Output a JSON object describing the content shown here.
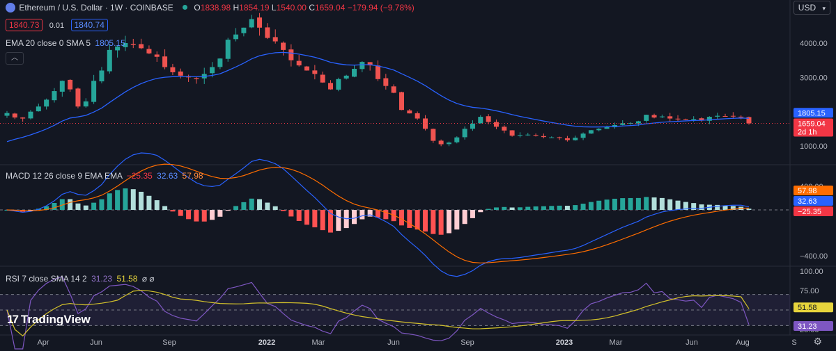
{
  "header": {
    "symbol": "Ethereum / U.S. Dollar · 1W · COINBASE",
    "open_label": "O",
    "open": "1838.98",
    "high_label": "H",
    "high": "1854.19",
    "low_label": "L",
    "low": "1540.00",
    "close_label": "C",
    "close": "1659.04",
    "change": "−179.94 (−9.78%)",
    "sell_price": "1840.73",
    "spread": "0.01",
    "buy_price": "1840.74",
    "currency": "USD"
  },
  "ema_legend": {
    "label": "EMA 20 close 0 SMA 5",
    "value": "1805.15"
  },
  "macd_legend": {
    "label": "MACD 12 26 close 9 EMA EMA",
    "hist": "−25.35",
    "macd": "32.63",
    "signal": "57.98"
  },
  "rsi_legend": {
    "label": "RSI 7 close SMA 14 2",
    "rsi": "31.23",
    "sma": "51.58",
    "extra": "⌀ ⌀"
  },
  "price_axis": {
    "ticks": [
      "4000.00",
      "3000.00",
      "1000.00"
    ]
  },
  "price_badges": {
    "ema": "1805.15",
    "close": "1659.04",
    "countdown": "2d 1h"
  },
  "macd_axis": {
    "ticks": [
      "−400.00"
    ],
    "top_partial": "400.00"
  },
  "macd_badges": {
    "signal": "57.98",
    "macd": "32.63",
    "hist": "−25.35"
  },
  "rsi_axis": {
    "ticks": [
      "100.00",
      "75.00",
      "25.00"
    ]
  },
  "rsi_badges": {
    "sma": "51.58",
    "rsi": "31.23"
  },
  "time_axis": [
    {
      "label": "Apr",
      "bold": false
    },
    {
      "label": "Jun",
      "bold": false
    },
    {
      "label": "Sep",
      "bold": false
    },
    {
      "label": "2022",
      "bold": true
    },
    {
      "label": "Mar",
      "bold": false
    },
    {
      "label": "Jun",
      "bold": false
    },
    {
      "label": "Sep",
      "bold": false
    },
    {
      "label": "2023",
      "bold": true
    },
    {
      "label": "Mar",
      "bold": false
    },
    {
      "label": "Jun",
      "bold": false
    },
    {
      "label": "Aug",
      "bold": false
    },
    {
      "label": "S",
      "bold": false
    }
  ],
  "logo_text": "TradingView",
  "colors": {
    "up": "#26a69a",
    "down": "#ef5350",
    "ema": "#2962ff",
    "macd": "#2962ff",
    "signal": "#ff6d00",
    "rsi": "#7e57c2",
    "rsi_sma": "#d4c22b"
  },
  "chart_data": {
    "type": "candlestick",
    "title": "Ethereum / U.S. Dollar · 1W · COINBASE",
    "price_anchor_close": [
      1960,
      1830,
      1800,
      2000,
      2150,
      2350,
      2600,
      2900,
      2650,
      2150,
      2300,
      2900,
      3200,
      3800,
      3900,
      4000,
      3950,
      3850,
      3700,
      3600,
      3300,
      3150,
      3050,
      3000,
      2950,
      3100,
      3300,
      3550,
      4100,
      4250,
      4450,
      4700,
      4450,
      4150,
      4050,
      3800,
      3500,
      3350,
      3200,
      3100,
      2850,
      2650,
      2950,
      3050,
      3250,
      3450,
      3350,
      2950,
      2750,
      2550,
      2050,
      1950,
      1800,
      1500,
      1150,
      1050,
      1100,
      1250,
      1500,
      1650,
      1850,
      1700,
      1560,
      1450,
      1300,
      1320,
      1330,
      1300,
      1260,
      1250,
      1230,
      1170,
      1240,
      1360,
      1460,
      1500,
      1560,
      1610,
      1660,
      1670,
      1720,
      1910,
      1830,
      1860,
      1800,
      1790,
      1780,
      1790,
      1740,
      1850,
      1880,
      1870,
      1860,
      1840,
      1659.04
    ],
    "ema20": {
      "first": 1040,
      "last": 1805.15
    },
    "macd": {
      "macd_last": 32.63,
      "signal_last": 57.98,
      "hist_last": -25.35,
      "axis_tick": -400
    },
    "rsi": {
      "rsi_last": 31.23,
      "sma_last": 51.58,
      "bands": [
        70,
        50,
        30
      ],
      "axis_ticks": [
        100,
        75,
        25
      ]
    },
    "legend_placement": "top-left",
    "grid": false
  }
}
